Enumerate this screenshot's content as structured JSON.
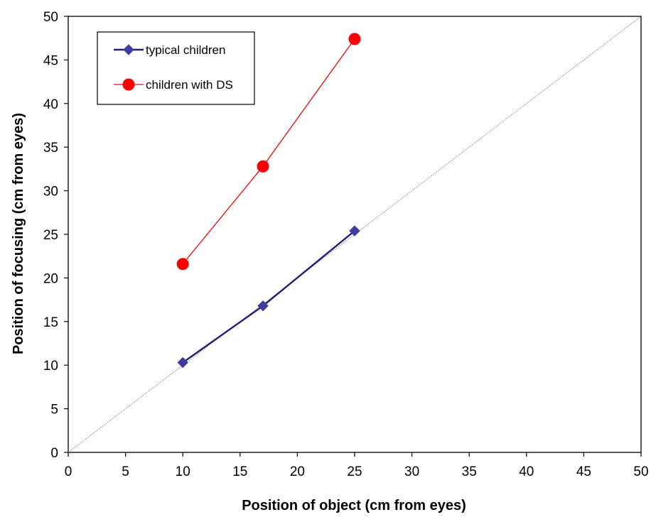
{
  "chart_data": {
    "type": "line",
    "xlabel": "Position of object (cm from eyes)",
    "ylabel": "Position of focusing (cm from eyes)",
    "xlim": [
      0,
      50
    ],
    "ylim": [
      0,
      50
    ],
    "x_ticks": [
      0,
      5,
      10,
      15,
      20,
      25,
      30,
      35,
      40,
      45,
      50
    ],
    "y_ticks": [
      0,
      5,
      10,
      15,
      20,
      25,
      30,
      35,
      40,
      45,
      50
    ],
    "grid": false,
    "legend_position": "top-left",
    "reference_line": {
      "x": [
        0,
        50
      ],
      "y": [
        0,
        50
      ],
      "style": "dotted",
      "color": "#888888"
    },
    "series": [
      {
        "name": "typical children",
        "x": [
          10,
          17,
          25
        ],
        "y": [
          10.3,
          16.8,
          25.4
        ],
        "color": "#1f1f7a",
        "marker": "diamond",
        "marker_color": "#3d3d9e"
      },
      {
        "name": "children with DS",
        "x": [
          10,
          17,
          25
        ],
        "y": [
          21.6,
          32.8,
          47.4
        ],
        "color": "#ff0000",
        "marker": "circle",
        "marker_color": "#ff0000"
      }
    ]
  }
}
